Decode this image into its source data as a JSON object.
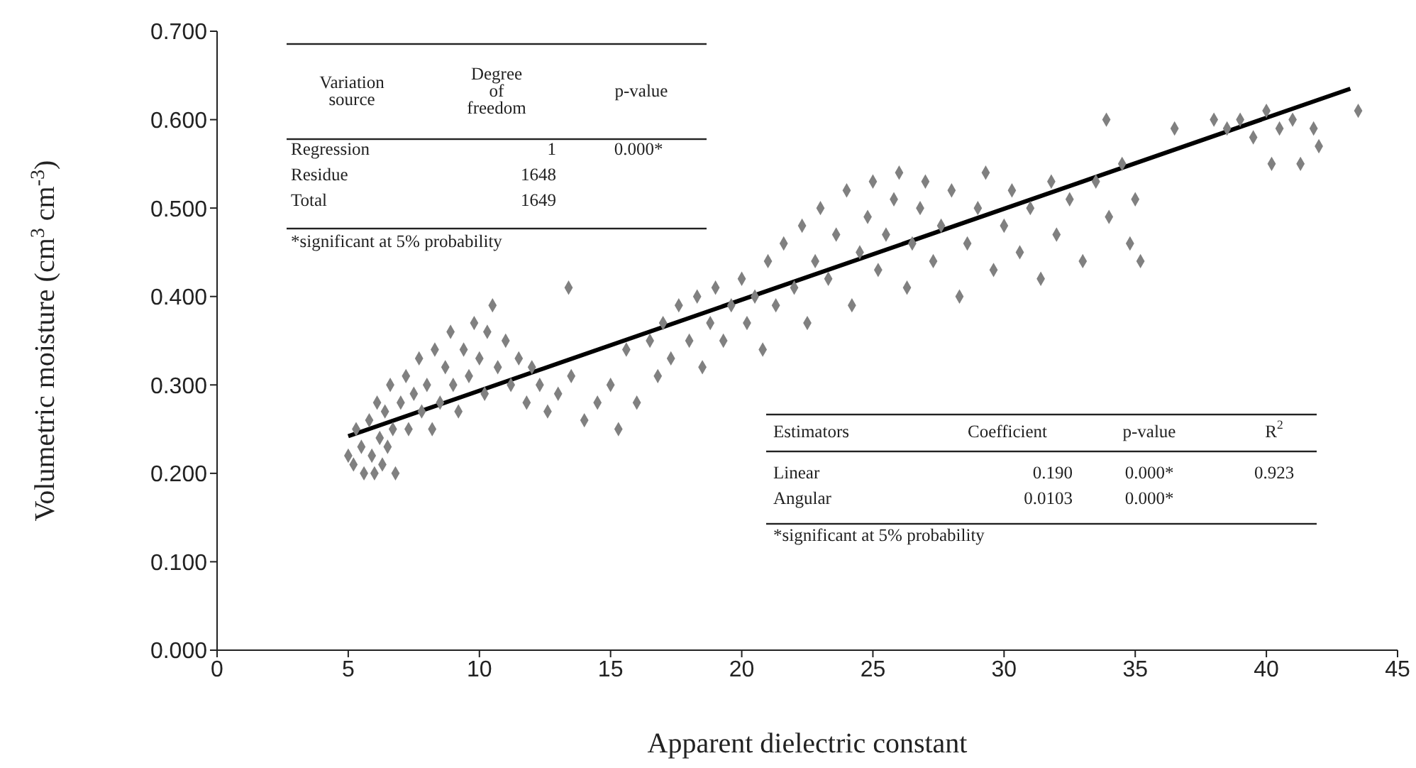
{
  "chart_data": {
    "type": "scatter",
    "xlabel": "Apparent dielectric constant",
    "ylabel": "Volumetric moisture (cm$^{3}$ cm$^{-3}$)",
    "xlim": [
      0,
      45
    ],
    "xticks": [
      0,
      5,
      10,
      15,
      20,
      25,
      30,
      35,
      40,
      45
    ],
    "ylim": [
      0,
      0.7
    ],
    "yticks": [
      {
        "value": 0,
        "label": "0.000"
      },
      {
        "value": 0.1,
        "label": "0.100"
      },
      {
        "value": 0.2,
        "label": "0.200"
      },
      {
        "value": 0.3,
        "label": "0.300"
      },
      {
        "value": 0.4,
        "label": "0.400"
      },
      {
        "value": 0.5,
        "label": "0.500"
      },
      {
        "value": 0.6,
        "label": "0.600"
      },
      {
        "value": 0.7,
        "label": "0.700"
      }
    ],
    "grid": false,
    "legend": false,
    "series": [
      {
        "marker": "diamond",
        "color": "#808080",
        "x": [
          5,
          5.2,
          5.3,
          5.5,
          5.6,
          5.8,
          5.9,
          6,
          6.1,
          6.2,
          6.3,
          6.4,
          6.5,
          6.6,
          6.7,
          6.8,
          7,
          7.2,
          7.3,
          7.5,
          7.7,
          7.8,
          8,
          8.2,
          8.3,
          8.5,
          8.7,
          8.9,
          9,
          9.2,
          9.4,
          9.6,
          9.8,
          10,
          10.2,
          10.3,
          10.5,
          10.7,
          11,
          11.2,
          11.5,
          11.8,
          12,
          12.3,
          12.6,
          13,
          13.4,
          13.5,
          14,
          14.5,
          15,
          15.3,
          15.6,
          16,
          16.5,
          16.8,
          17,
          17.3,
          17.6,
          18,
          18.3,
          18.5,
          18.8,
          19,
          19.3,
          19.6,
          20,
          20.2,
          20.5,
          20.8,
          21,
          21.3,
          21.6,
          22,
          22.3,
          22.5,
          22.8,
          23,
          23.3,
          23.6,
          24,
          24.2,
          24.5,
          24.8,
          25,
          25.2,
          25.5,
          25.8,
          26,
          26.3,
          26.5,
          26.8,
          27,
          27.3,
          27.6,
          28,
          28.3,
          28.6,
          29,
          29.3,
          29.6,
          30,
          30.3,
          30.6,
          31,
          31.4,
          31.8,
          32,
          32.5,
          33,
          33.5,
          33.9,
          34,
          34.5,
          34.8,
          35,
          35.2,
          36.5,
          38,
          38.5,
          39,
          39.5,
          40,
          40.2,
          40.5,
          41,
          41.3,
          41.8,
          42,
          43.5
        ],
        "values": [
          0.22,
          0.21,
          0.25,
          0.23,
          0.2,
          0.26,
          0.22,
          0.2,
          0.28,
          0.24,
          0.21,
          0.27,
          0.23,
          0.3,
          0.25,
          0.2,
          0.28,
          0.31,
          0.25,
          0.29,
          0.33,
          0.27,
          0.3,
          0.25,
          0.34,
          0.28,
          0.32,
          0.36,
          0.3,
          0.27,
          0.34,
          0.31,
          0.37,
          0.33,
          0.29,
          0.36,
          0.39,
          0.32,
          0.35,
          0.3,
          0.33,
          0.28,
          0.32,
          0.3,
          0.27,
          0.29,
          0.41,
          0.31,
          0.26,
          0.28,
          0.3,
          0.25,
          0.34,
          0.28,
          0.35,
          0.31,
          0.37,
          0.33,
          0.39,
          0.35,
          0.4,
          0.32,
          0.37,
          0.41,
          0.35,
          0.39,
          0.42,
          0.37,
          0.4,
          0.34,
          0.44,
          0.39,
          0.46,
          0.41,
          0.48,
          0.37,
          0.44,
          0.5,
          0.42,
          0.47,
          0.52,
          0.39,
          0.45,
          0.49,
          0.53,
          0.43,
          0.47,
          0.51,
          0.54,
          0.41,
          0.46,
          0.5,
          0.53,
          0.44,
          0.48,
          0.52,
          0.4,
          0.46,
          0.5,
          0.54,
          0.43,
          0.48,
          0.52,
          0.45,
          0.5,
          0.42,
          0.53,
          0.47,
          0.51,
          0.44,
          0.53,
          0.6,
          0.49,
          0.55,
          0.46,
          0.51,
          0.44,
          0.59,
          0.6,
          0.59,
          0.6,
          0.58,
          0.61,
          0.55,
          0.59,
          0.6,
          0.55,
          0.59,
          0.57,
          0.61
        ]
      },
      {
        "type": "line",
        "marker": "none",
        "color": "#000000",
        "x": [
          5,
          43.2
        ],
        "values": [
          0.242,
          0.635
        ]
      }
    ],
    "annotations": [
      "Variation source",
      "Degree of freedom",
      "p-value",
      "Regression",
      "1",
      "0.000*",
      "Residue",
      "1648",
      "Total",
      "1649",
      "*significant at 5% probability",
      "Estimators",
      "Coefficient",
      "p-value",
      "R$^{2}$",
      "Linear",
      "0.190",
      "0.000*",
      "0.923",
      "Angular",
      "0.0103",
      "0.000*",
      "*significant at 5% probability"
    ]
  }
}
